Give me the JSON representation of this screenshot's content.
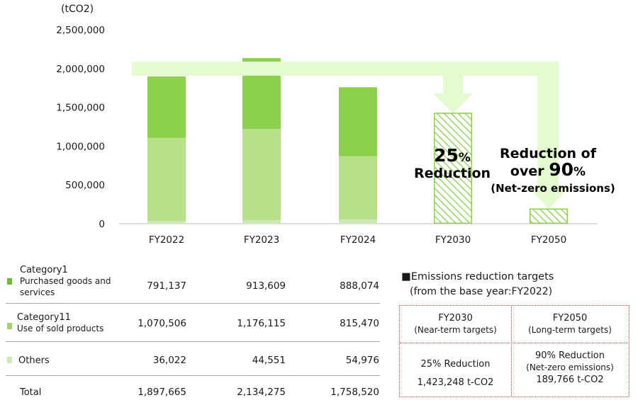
{
  "chart_data": {
    "type": "bar",
    "unit_label": "(tCO2)",
    "categories": [
      "FY2022",
      "FY2023",
      "FY2024",
      "FY2030",
      "FY2050"
    ],
    "series": [
      {
        "name": "Others",
        "color": "#cfe8b8",
        "values": [
          36022,
          44551,
          54976,
          null,
          null
        ]
      },
      {
        "name": "Category11 Use of sold products",
        "color": "#b8e08a",
        "values": [
          1070506,
          1176115,
          815470,
          null,
          null
        ]
      },
      {
        "name": "Category1 Purchased goods and services",
        "color": "#8cd04c",
        "values": [
          791137,
          913609,
          888074,
          null,
          null
        ]
      }
    ],
    "targets": [
      {
        "category": "FY2030",
        "value": 1423248,
        "pattern": "hatched"
      },
      {
        "category": "FY2050",
        "value": 189766,
        "pattern": "hatched"
      }
    ],
    "y_ticks": [
      0,
      500000,
      1000000,
      1500000,
      2000000,
      2500000
    ],
    "y_tick_labels": [
      "0",
      "500,000",
      "1,000,000",
      "1,500,000",
      "2,000,000",
      "2,500,000"
    ],
    "ylim": [
      0,
      2500000
    ],
    "annotations": {
      "fy2030_big": "25",
      "fy2030_pct": "%",
      "fy2030_word": "Reduction",
      "fy2050_line1": "Reduction of",
      "fy2050_over": "over ",
      "fy2050_big": "90",
      "fy2050_pct": "%",
      "fy2050_line3": "(Net-zero emissions)"
    },
    "arrow_color": "#e3fbcf"
  },
  "table": {
    "rows": [
      {
        "label": "Category1",
        "sub": "Purchased goods and services",
        "color": "#6dbb3a",
        "values": [
          "791,137",
          "913,609",
          "888,074"
        ]
      },
      {
        "label": "Category11",
        "sub": "Use of sold products",
        "color": "#9fd26a",
        "values": [
          "1,070,506",
          "1,176,115",
          "815,470"
        ]
      },
      {
        "label": "Others",
        "sub": "",
        "color": "#cfe8b8",
        "values": [
          "36,022",
          "44,551",
          "54,976"
        ]
      },
      {
        "label": "Total",
        "sub": "",
        "color": "",
        "values": [
          "1,897,665",
          "2,134,275",
          "1,758,520"
        ]
      }
    ]
  },
  "targets_panel": {
    "title": "■Emissions reduction targets",
    "subtitle": "(from the base year:FY2022)",
    "col1_head": "FY2030",
    "col1_sub": "(Near-term targets)",
    "col2_head": "FY2050",
    "col2_sub": "(Long-term targets)",
    "col1_line1": "25% Reduction",
    "col1_line2": "1,423,248 t-CO2",
    "col2_line1": "90% Reduction",
    "col2_line2": "(Net-zero emissions)",
    "col2_line3": "189,766 t-CO2"
  }
}
